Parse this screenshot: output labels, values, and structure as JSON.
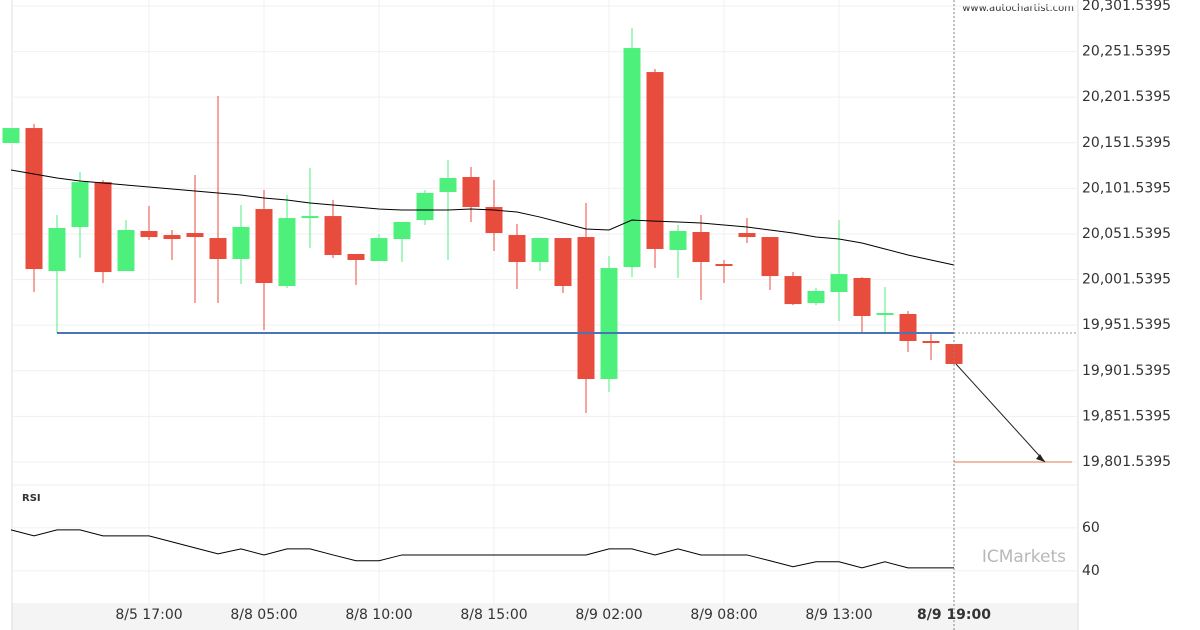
{
  "chart_data": [
    {
      "type": "candlestick",
      "watermark": "www.autochartist.com",
      "categories": [
        null,
        null,
        null,
        null,
        null,
        null,
        "8/5 17:00",
        null,
        null,
        null,
        null,
        "8/8 05:00",
        null,
        null,
        null,
        null,
        "8/8 10:00",
        null,
        null,
        null,
        null,
        "8/8 15:00",
        null,
        null,
        null,
        null,
        "8/9 02:00",
        null,
        null,
        null,
        null,
        "8/9 08:00",
        null,
        null,
        null,
        null,
        "8/9 13:00",
        null,
        null,
        null,
        null,
        "8/9 19:00"
      ],
      "open": [
        20151.3,
        20167.7,
        20010.9,
        20059.2,
        20108.5,
        20010.9,
        20054.8,
        20050.4,
        20052.6,
        20047.1,
        20024.1,
        20078.9,
        19994.5,
        20069.0,
        20071.2,
        20029.6,
        20021.9,
        20046.0,
        20066.8,
        20097.6,
        20114.0,
        20081.1,
        20050.4,
        20020.8,
        20047.1,
        20048.2,
        19892.5,
        20015.3,
        20229.1,
        20034.0,
        20053.7,
        20018.6,
        20052.6,
        20048.2,
        20005.4,
        19975.8,
        19987.9,
        20003.3,
        19962.7,
        19963.8,
        19934.2,
        19930.9
      ],
      "high": [
        20167.7,
        20172.1,
        20072.3,
        20119.5,
        20110.7,
        20066.8,
        20082.2,
        20055.9,
        20116.2,
        20202.8,
        20083.3,
        20099.7,
        20094.3,
        20123.9,
        20088.8,
        20029.6,
        20051.5,
        20064.7,
        20099.7,
        20132.6,
        20125.0,
        20110.7,
        20062.5,
        20047.1,
        20047.1,
        20085.5,
        20027.4,
        20277.4,
        20232.4,
        20061.4,
        20072.3,
        20023.0,
        20069.0,
        20048.2,
        20009.8,
        19992.3,
        20066.8,
        20004.3,
        19993.4,
        19967.1,
        19942.9,
        19930.9
      ],
      "low": [
        20151.3,
        19987.9,
        19942.9,
        20025.2,
        19997.8,
        20010.9,
        20044.9,
        20023.0,
        19975.8,
        19975.8,
        19996.7,
        19946.2,
        19992.3,
        20036.1,
        20025.2,
        19995.6,
        20021.9,
        20020.8,
        20061.4,
        20023.0,
        20064.7,
        20032.9,
        19991.2,
        20010.9,
        19986.8,
        19855.2,
        19878.3,
        20004.3,
        20014.2,
        20003.3,
        19979.1,
        19997.8,
        20041.6,
        19990.1,
        19973.6,
        19973.6,
        19956.1,
        19942.9,
        19944.0,
        19922.1,
        19913.3,
        19909.0
      ],
      "close": [
        20167.7,
        20013.1,
        20058.1,
        20108.5,
        20009.8,
        20055.9,
        20048.2,
        20046.0,
        20048.2,
        20024.1,
        20059.2,
        19997.8,
        20069.0,
        20071.2,
        20028.5,
        20023.0,
        20047.1,
        20064.7,
        20096.5,
        20112.9,
        20081.1,
        20052.6,
        20020.8,
        20047.1,
        19994.5,
        19892.5,
        20014.2,
        20255.4,
        20035.1,
        20054.8,
        20020.8,
        20016.4,
        20048.2,
        20005.4,
        19974.7,
        19989.0,
        20007.6,
        19961.6,
        19964.9,
        19934.2,
        19932.0,
        19909.0
      ],
      "up_color": "#4ef07c",
      "down_color": "#e84c3d",
      "moving_average": {
        "color": "#000000",
        "values": [
          20121.7,
          20117.3,
          20112.9,
          20109.6,
          20107.4,
          20105.2,
          20103.0,
          20100.8,
          20098.7,
          20096.5,
          20094.3,
          20091.0,
          20088.8,
          20085.5,
          20083.3,
          20081.1,
          20078.9,
          20077.8,
          20077.8,
          20077.8,
          20078.9,
          20077.8,
          20075.6,
          20070.1,
          20063.6,
          20057.0,
          20055.9,
          20066.8,
          20065.7,
          20064.7,
          20063.6,
          20061.4,
          20059.2,
          20055.9,
          20052.6,
          20048.2,
          20046.0,
          20041.6,
          20035.1,
          20028.5,
          20023.0,
          20017.5
        ]
      },
      "support": {
        "value": 19942.9,
        "color": "#4a76b8"
      },
      "target": {
        "value": 19801.5395,
        "color": "#e07a4a"
      },
      "ylim": [
        19776.3,
        20308.1
      ],
      "yticks": [
        {
          "value": 19801.5395,
          "label": "19,801.5395"
        },
        {
          "value": 19851.5395,
          "label": "19,851.5395"
        },
        {
          "value": 19901.5395,
          "label": "19,901.5395"
        },
        {
          "value": 19951.5395,
          "label": "19,951.5395"
        },
        {
          "value": 20001.5395,
          "label": "20,001.5395"
        },
        {
          "value": 20051.5395,
          "label": "20,051.5395"
        },
        {
          "value": 20101.5395,
          "label": "20,101.5395"
        },
        {
          "value": 20151.5395,
          "label": "20,151.5395"
        },
        {
          "value": 20201.5395,
          "label": "20,201.5395"
        },
        {
          "value": 20251.5395,
          "label": "20,251.5395"
        },
        {
          "value": 20301.5395,
          "label": "20,301.5395"
        }
      ],
      "grid": true
    },
    {
      "type": "line",
      "title": "RSI",
      "logo": "ICMarkets",
      "series": [
        {
          "color": "#000000",
          "values": [
            59.1,
            56.3,
            59.1,
            59.1,
            56.3,
            56.3,
            56.3,
            53.5,
            50.7,
            47.9,
            50.2,
            47.4,
            50.2,
            50.2,
            47.4,
            44.7,
            44.7,
            47.4,
            47.4,
            47.4,
            47.4,
            47.4,
            47.4,
            47.4,
            47.4,
            47.4,
            50.2,
            50.2,
            47.4,
            50.2,
            47.4,
            47.4,
            47.4,
            44.7,
            41.9,
            44.2,
            44.2,
            41.4,
            44.2,
            41.4,
            41.4,
            41.4
          ]
        }
      ],
      "ylim": [
        25,
        80
      ],
      "yticks": [
        40,
        60
      ]
    }
  ]
}
